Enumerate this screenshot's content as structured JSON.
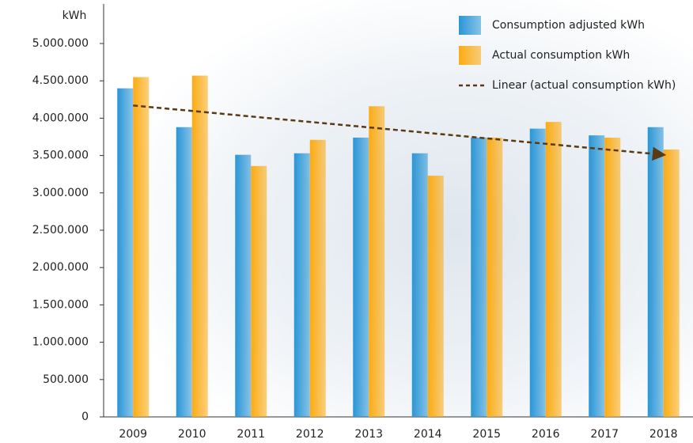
{
  "chart_data": {
    "type": "bar",
    "y_label": "kWh",
    "categories": [
      "2009",
      "2010",
      "2011",
      "2012",
      "2013",
      "2014",
      "2015",
      "2016",
      "2017",
      "2018"
    ],
    "series": [
      {
        "name": "Consumption adjusted kWh",
        "color": "#2a96d6",
        "values": [
          4400000,
          3880000,
          3510000,
          3530000,
          3740000,
          3530000,
          3740000,
          3860000,
          3770000,
          3880000
        ]
      },
      {
        "name": "Actual consumption kWh",
        "color": "#fbab12",
        "values": [
          4550000,
          4570000,
          3360000,
          3710000,
          4160000,
          3230000,
          3740000,
          3950000,
          3740000,
          3580000
        ]
      },
      {
        "name": "Linear (actual consumption kWh)",
        "color": "#5a3a12",
        "type": "line",
        "dashed": true,
        "values": [
          4170000,
          4097000,
          4023000,
          3950000,
          3877000,
          3803000,
          3730000,
          3657000,
          3583000,
          3510000
        ]
      }
    ],
    "ylim": [
      0,
      5000000
    ],
    "yticks": [
      0,
      {
        "value": 500000,
        "label": "500.000"
      },
      {
        "value": 1000000,
        "label": "1.000.000"
      },
      {
        "value": 1500000,
        "label": "1.500.000"
      },
      {
        "value": 2000000,
        "label": "2.000.000"
      },
      {
        "value": 2500000,
        "label": "2.500.000"
      },
      {
        "value": 3000000,
        "label": "3.000.000"
      },
      {
        "value": 3500000,
        "label": "3.500.000"
      },
      {
        "value": 4000000,
        "label": "4.000.000"
      },
      {
        "value": 4500000,
        "label": "4.500.000"
      },
      {
        "value": 5000000,
        "label": "5.000.000"
      }
    ],
    "legend": "top-right"
  }
}
